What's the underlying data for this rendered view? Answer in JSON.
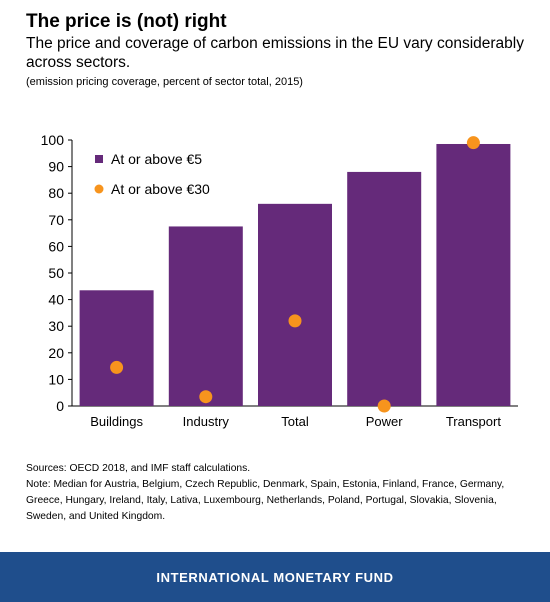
{
  "header": {
    "title": "The price is (not) right",
    "subtitle": "The price and coverage of carbon emissions in the EU vary considerably across sectors.",
    "note": "(emission pricing coverage, percent of sector total, 2015)"
  },
  "chart_data": {
    "type": "bar",
    "categories": [
      "Buildings",
      "Industry",
      "Total",
      "Power",
      "Transport"
    ],
    "series": [
      {
        "name": "At or above €5",
        "type": "bar",
        "color": "#652a7a",
        "values": [
          43.5,
          67.5,
          76,
          88,
          98.5
        ]
      },
      {
        "name": "At or above €30",
        "type": "scatter",
        "color": "#f7941d",
        "values": [
          14.5,
          3.5,
          32,
          0,
          99
        ]
      }
    ],
    "ylim": [
      0,
      100
    ],
    "yticks": [
      0,
      10,
      20,
      30,
      40,
      50,
      60,
      70,
      80,
      90,
      100
    ],
    "grid": false,
    "legend_position": "top-left",
    "xlabel": "",
    "ylabel": ""
  },
  "footnotes": {
    "sources": "Sources: OECD 2018, and IMF staff calculations.",
    "note": "Note: Median for Austria, Belgium, Czech Republic, Denmark, Spain, Estonia, Finland, France, Germany, Greece, Hungary, Ireland, Italy, Lativa, Luxembourg, Netherlands, Poland, Portugal, Slovakia, Slovenia, Sweden, and United Kingdom."
  },
  "footer": {
    "label": "INTERNATIONAL MONETARY FUND",
    "color": "#1f4e8c"
  }
}
